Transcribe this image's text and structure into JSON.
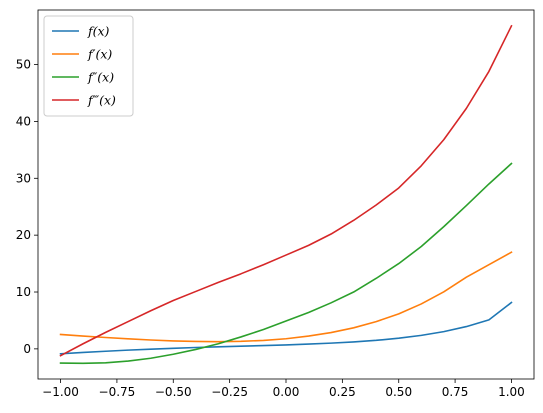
{
  "chart_data": {
    "type": "line",
    "title": "",
    "xlabel": "",
    "ylabel": "",
    "xlim": [
      -1.1,
      1.1
    ],
    "ylim": [
      -5.3,
      59.6
    ],
    "xticks": [
      -1.0,
      -0.75,
      -0.5,
      -0.25,
      0.0,
      0.25,
      0.5,
      0.75,
      1.0
    ],
    "xtick_labels": [
      "−1.00",
      "−0.75",
      "−0.50",
      "−0.25",
      "0.00",
      "0.25",
      "0.50",
      "0.75",
      "1.00"
    ],
    "yticks": [
      0,
      10,
      20,
      30,
      40,
      50
    ],
    "ytick_labels": [
      "0",
      "10",
      "20",
      "30",
      "40",
      "50"
    ],
    "grid": false,
    "legend_position": "top-left",
    "x": [
      -1.0,
      -0.9,
      -0.8,
      -0.7,
      -0.6,
      -0.5,
      -0.4,
      -0.3,
      -0.2,
      -0.1,
      0.0,
      0.1,
      0.2,
      0.3,
      0.4,
      0.5,
      0.6,
      0.7,
      0.8,
      0.9,
      1.0
    ],
    "series": [
      {
        "name": "f(x)",
        "color": "#1f77b4",
        "values": [
          -0.86,
          -0.63,
          -0.42,
          -0.22,
          -0.05,
          0.1,
          0.24,
          0.36,
          0.47,
          0.58,
          0.7,
          0.84,
          1.01,
          1.22,
          1.5,
          1.87,
          2.37,
          3.03,
          3.92,
          5.1,
          8.15
        ]
      },
      {
        "name": "f′(x)",
        "color": "#ff7f0e",
        "values": [
          2.53,
          2.26,
          2.0,
          1.76,
          1.56,
          1.4,
          1.31,
          1.27,
          1.32,
          1.49,
          1.78,
          2.25,
          2.87,
          3.7,
          4.79,
          6.16,
          7.9,
          10.03,
          12.6,
          14.8,
          17.0
        ]
      },
      {
        "name": "f″(x)",
        "color": "#2ca02c",
        "values": [
          -2.5,
          -2.55,
          -2.45,
          -2.15,
          -1.65,
          -0.95,
          -0.1,
          0.9,
          2.1,
          3.4,
          4.9,
          6.4,
          8.1,
          10.0,
          12.4,
          15.0,
          18.0,
          21.5,
          25.2,
          29.0,
          32.6
        ]
      },
      {
        "name": "f‴(x)",
        "color": "#d62728",
        "values": [
          -1.2,
          0.9,
          2.9,
          4.8,
          6.7,
          8.5,
          10.1,
          11.7,
          13.2,
          14.8,
          16.5,
          18.2,
          20.2,
          22.6,
          25.3,
          28.3,
          32.2,
          36.8,
          42.3,
          48.8,
          56.8
        ]
      }
    ]
  }
}
